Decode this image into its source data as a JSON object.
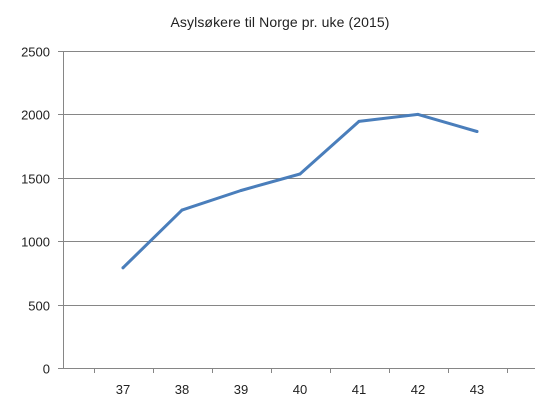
{
  "chart_data": {
    "type": "line",
    "title": "Asylsøkere til Norge pr. uke (2015)",
    "xlabel": "",
    "ylabel": "",
    "categories": [
      "37",
      "38",
      "39",
      "40",
      "41",
      "42",
      "43"
    ],
    "series": [
      {
        "values": [
          790,
          1245,
          1400,
          1530,
          1945,
          2000,
          1865
        ],
        "color": "#4a7ebb"
      }
    ],
    "ylim": [
      0,
      2500
    ],
    "yticks": [
      0,
      500,
      1000,
      1500,
      2000,
      2500
    ],
    "grid": true,
    "legend": "none"
  }
}
